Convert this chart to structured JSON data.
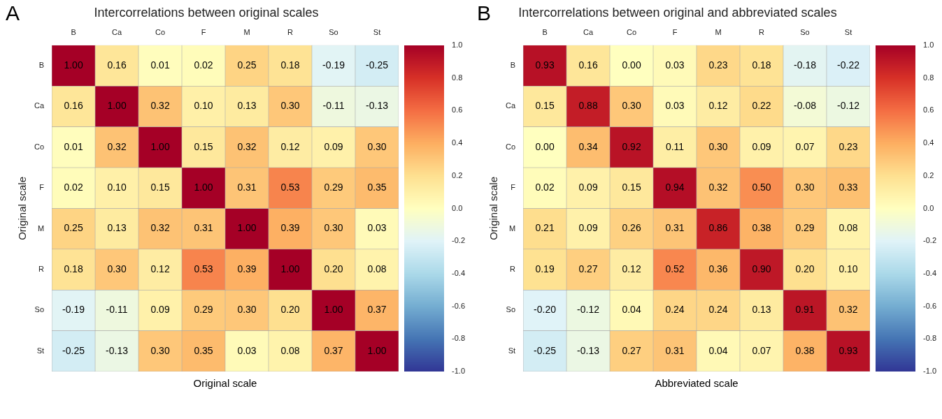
{
  "chart_data": [
    {
      "type": "heatmap",
      "title": "Intercorrelations between original scales",
      "xlabel": "Original scale",
      "ylabel": "Original scale",
      "annotations": [
        "A"
      ],
      "categories": [
        "B",
        "Ca",
        "Co",
        "F",
        "M",
        "R",
        "So",
        "St"
      ],
      "y_categories": [
        "B",
        "Ca",
        "Co",
        "F",
        "M",
        "R",
        "So",
        "St"
      ],
      "cells": [
        [
          1.0,
          0.16,
          0.01,
          0.02,
          0.25,
          0.18,
          -0.19,
          -0.25
        ],
        [
          0.16,
          1.0,
          0.32,
          0.1,
          0.13,
          0.3,
          -0.11,
          -0.13
        ],
        [
          0.01,
          0.32,
          1.0,
          0.15,
          0.32,
          0.12,
          0.09,
          0.3
        ],
        [
          0.02,
          0.1,
          0.15,
          1.0,
          0.31,
          0.53,
          0.29,
          0.35
        ],
        [
          0.25,
          0.13,
          0.32,
          0.31,
          1.0,
          0.39,
          0.3,
          0.03
        ],
        [
          0.18,
          0.3,
          0.12,
          0.53,
          0.39,
          1.0,
          0.2,
          0.08
        ],
        [
          -0.19,
          -0.11,
          0.09,
          0.29,
          0.3,
          0.2,
          1.0,
          0.37
        ],
        [
          -0.25,
          -0.13,
          0.3,
          0.35,
          0.03,
          0.08,
          0.37,
          1.0
        ]
      ],
      "cell_labels": [
        [
          "1.00",
          "0.16",
          "0.01",
          "0.02",
          "0.25",
          "0.18",
          "-0.19",
          "-0.25"
        ],
        [
          "0.16",
          "1.00",
          "0.32",
          "0.10",
          "0.13",
          "0.30",
          "-0.11",
          "-0.13"
        ],
        [
          "0.01",
          "0.32",
          "1.00",
          "0.15",
          "0.32",
          "0.12",
          "0.09",
          "0.30"
        ],
        [
          "0.02",
          "0.10",
          "0.15",
          "1.00",
          "0.31",
          "0.53",
          "0.29",
          "0.35"
        ],
        [
          "0.25",
          "0.13",
          "0.32",
          "0.31",
          "1.00",
          "0.39",
          "0.30",
          "0.03"
        ],
        [
          "0.18",
          "0.30",
          "0.12",
          "0.53",
          "0.39",
          "1.00",
          "0.20",
          "0.08"
        ],
        [
          "-0.19",
          "-0.11",
          "0.09",
          "0.29",
          "0.30",
          "0.20",
          "1.00",
          "0.37"
        ],
        [
          "-0.25",
          "-0.13",
          "0.30",
          "0.35",
          "0.03",
          "0.08",
          "0.37",
          "1.00"
        ]
      ],
      "clim": [
        -1,
        1
      ],
      "cticks": [
        {
          "value": -1,
          "label": "-1.0"
        },
        {
          "value": -0.8,
          "label": "-0.8"
        },
        {
          "value": -0.6,
          "label": "-0.6"
        },
        {
          "value": -0.4,
          "label": "-0.4"
        },
        {
          "value": -0.2,
          "label": "-0.2"
        },
        {
          "value": 0,
          "label": "0.0"
        },
        {
          "value": 0.2,
          "label": "0.2"
        },
        {
          "value": 0.4,
          "label": "0.4"
        },
        {
          "value": 0.6,
          "label": "0.6"
        },
        {
          "value": 0.8,
          "label": "0.8"
        },
        {
          "value": 1,
          "label": "1.0"
        }
      ]
    },
    {
      "type": "heatmap",
      "title": "Intercorrelations between original and abbreviated scales",
      "xlabel": "Abbreviated scale",
      "ylabel": "Original scale",
      "annotations": [
        "B"
      ],
      "categories": [
        "B",
        "Ca",
        "Co",
        "F",
        "M",
        "R",
        "So",
        "St"
      ],
      "y_categories": [
        "B",
        "Ca",
        "Co",
        "F",
        "M",
        "R",
        "So",
        "St"
      ],
      "cells": [
        [
          0.93,
          0.16,
          0.0,
          0.03,
          0.23,
          0.18,
          -0.18,
          -0.22
        ],
        [
          0.15,
          0.88,
          0.3,
          0.03,
          0.12,
          0.22,
          -0.08,
          -0.12
        ],
        [
          0.0,
          0.34,
          0.92,
          0.11,
          0.3,
          0.09,
          0.07,
          0.23
        ],
        [
          0.02,
          0.09,
          0.15,
          0.94,
          0.32,
          0.5,
          0.3,
          0.33
        ],
        [
          0.21,
          0.09,
          0.26,
          0.31,
          0.86,
          0.38,
          0.29,
          0.08
        ],
        [
          0.19,
          0.27,
          0.12,
          0.52,
          0.36,
          0.9,
          0.2,
          0.1
        ],
        [
          -0.2,
          -0.12,
          0.04,
          0.24,
          0.24,
          0.13,
          0.91,
          0.32
        ],
        [
          -0.25,
          -0.13,
          0.27,
          0.31,
          0.04,
          0.07,
          0.38,
          0.93
        ]
      ],
      "cell_labels": [
        [
          "0.93",
          "0.16",
          "0.00",
          "0.03",
          "0.23",
          "0.18",
          "-0.18",
          "-0.22"
        ],
        [
          "0.15",
          "0.88",
          "0.30",
          "0.03",
          "0.12",
          "0.22",
          "-0.08",
          "-0.12"
        ],
        [
          "0.00",
          "0.34",
          "0.92",
          "0.11",
          "0.30",
          "0.09",
          "0.07",
          "0.23"
        ],
        [
          "0.02",
          "0.09",
          "0.15",
          "0.94",
          "0.32",
          "0.50",
          "0.30",
          "0.33"
        ],
        [
          "0.21",
          "0.09",
          "0.26",
          "0.31",
          "0.86",
          "0.38",
          "0.29",
          "0.08"
        ],
        [
          "0.19",
          "0.27",
          "0.12",
          "0.52",
          "0.36",
          "0.90",
          "0.20",
          "0.10"
        ],
        [
          "-0.20",
          "-0.12",
          "0.04",
          "0.24",
          "0.24",
          "0.13",
          "0.91",
          "0.32"
        ],
        [
          "-0.25",
          "-0.13",
          "0.27",
          "0.31",
          "0.04",
          "0.07",
          "0.38",
          "0.93"
        ]
      ],
      "clim": [
        -1,
        1
      ],
      "cticks": [
        {
          "value": -1,
          "label": "-1.0"
        },
        {
          "value": -0.8,
          "label": "-0.8"
        },
        {
          "value": -0.6,
          "label": "-0.6"
        },
        {
          "value": -0.4,
          "label": "-0.4"
        },
        {
          "value": -0.2,
          "label": "-0.2"
        },
        {
          "value": 0,
          "label": "0.0"
        },
        {
          "value": 0.2,
          "label": "0.2"
        },
        {
          "value": 0.4,
          "label": "0.4"
        },
        {
          "value": 0.6,
          "label": "0.6"
        },
        {
          "value": 0.8,
          "label": "0.8"
        },
        {
          "value": 1,
          "label": "1.0"
        }
      ]
    }
  ]
}
